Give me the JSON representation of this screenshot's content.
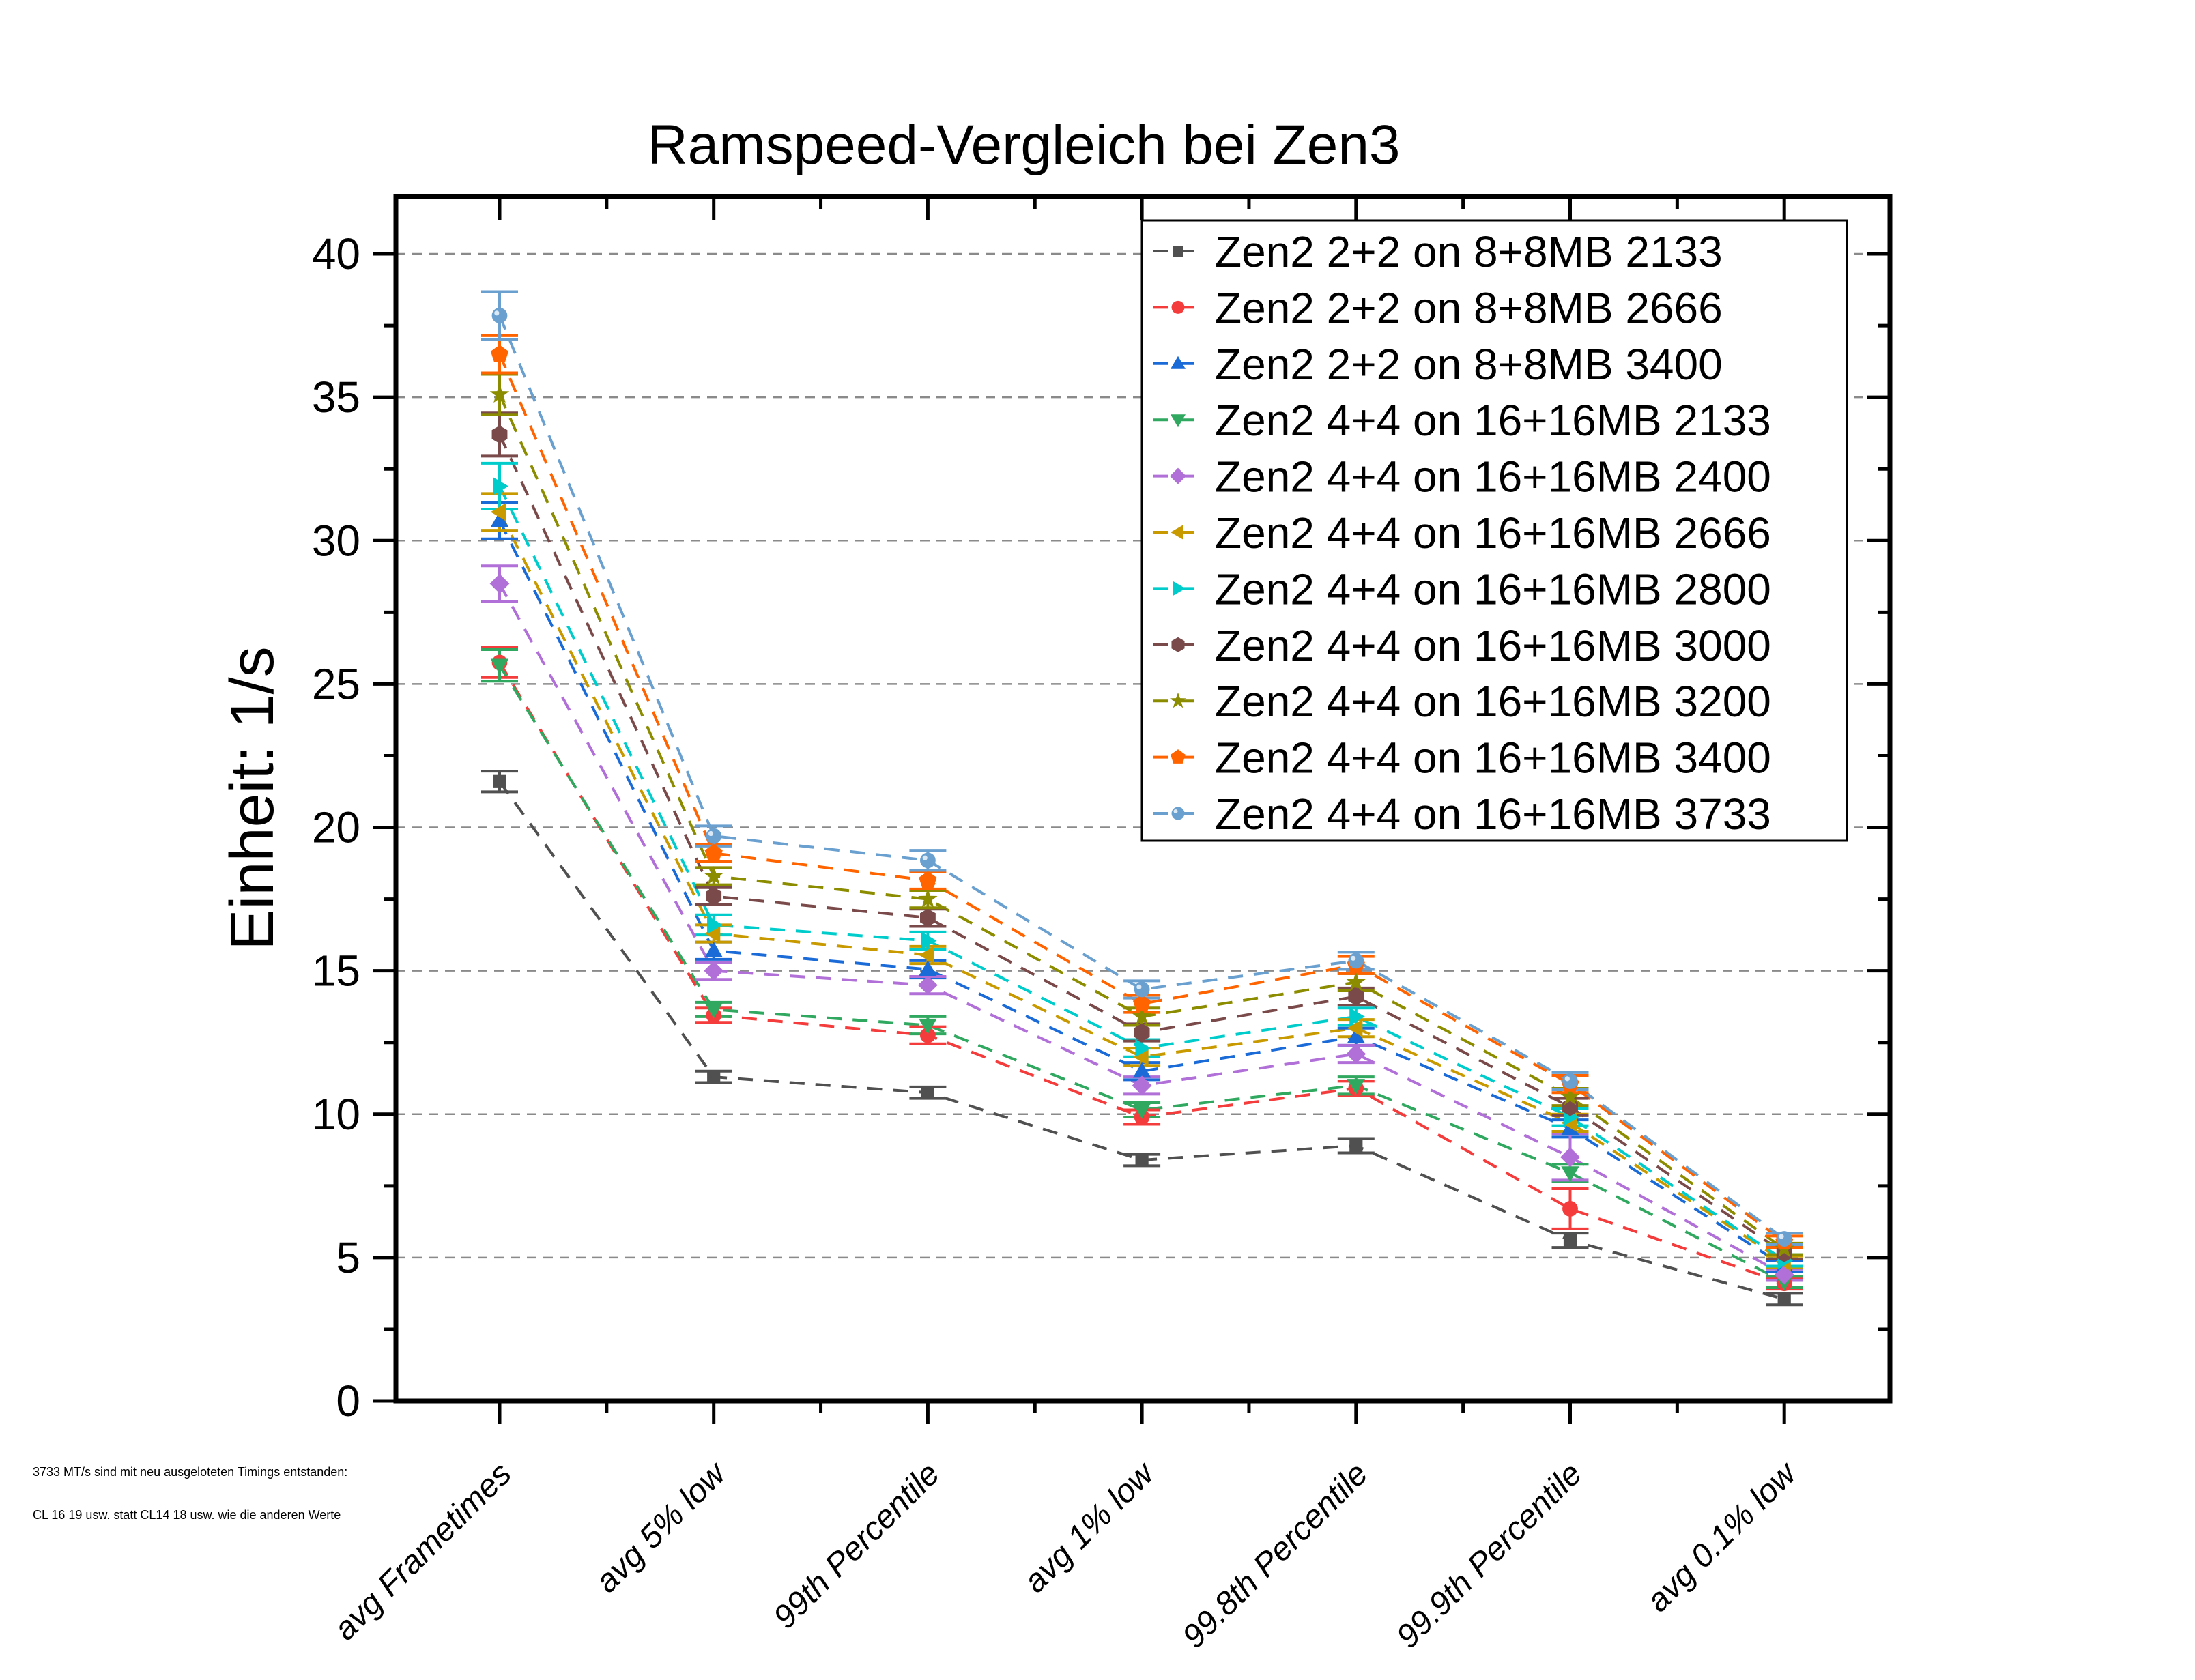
{
  "chart_data": {
    "type": "line",
    "title": "Ramspeed-Vergleich bei Zen3",
    "xlabel": "",
    "ylabel": "Einheit: 1/s",
    "ylim": [
      0,
      42
    ],
    "yticks": [
      0,
      5,
      10,
      15,
      20,
      25,
      30,
      35,
      40
    ],
    "grid": true,
    "legend_position": "top-right",
    "line_style": "dashed",
    "error_bars": true,
    "categories": [
      "avg Frametimes",
      "avg 5% low",
      "99th Percentile",
      "avg 1% low",
      "99.8th Percentile",
      "99.9th Percentile",
      "avg 0.1% low"
    ],
    "series": [
      {
        "name": "Zen2 2+2 on 8+8MB 2133",
        "color": "#505050",
        "marker": "square",
        "values": [
          21.6,
          11.3,
          10.75,
          8.4,
          8.9,
          5.6,
          3.55
        ],
        "errors": [
          0.36,
          0.2,
          0.2,
          0.2,
          0.25,
          0.25,
          0.2
        ]
      },
      {
        "name": "Zen2 2+2 on 8+8MB 2666",
        "color": "#f53c3c",
        "marker": "circle",
        "values": [
          25.75,
          13.45,
          12.75,
          9.9,
          10.9,
          6.7,
          4.1
        ],
        "errors": [
          0.52,
          0.25,
          0.3,
          0.25,
          0.25,
          0.7,
          0.2
        ]
      },
      {
        "name": "Zen2 2+2 on 8+8MB 3400",
        "color": "#1a6ad8",
        "marker": "triangle-up",
        "values": [
          30.7,
          15.7,
          15.05,
          11.5,
          12.7,
          9.5,
          4.7
        ],
        "errors": [
          0.64,
          0.3,
          0.3,
          0.3,
          0.3,
          0.3,
          0.2
        ]
      },
      {
        "name": "Zen2 4+4 on 16+16MB 2133",
        "color": "#30a860",
        "marker": "triangle-down",
        "values": [
          25.65,
          13.65,
          13.1,
          10.15,
          11.0,
          7.95,
          4.15
        ],
        "errors": [
          0.55,
          0.25,
          0.3,
          0.25,
          0.3,
          0.3,
          0.2
        ]
      },
      {
        "name": "Zen2 4+4 on 16+16MB 2400",
        "color": "#b070d8",
        "marker": "diamond",
        "values": [
          28.5,
          15.0,
          14.5,
          11.0,
          12.1,
          8.5,
          4.4
        ],
        "errors": [
          0.62,
          0.3,
          0.3,
          0.3,
          0.3,
          0.8,
          0.2
        ]
      },
      {
        "name": "Zen2 4+4 on 16+16MB 2666",
        "color": "#c89a00",
        "marker": "triangle-left",
        "values": [
          31.0,
          16.3,
          15.55,
          12.0,
          13.0,
          9.7,
          4.85
        ],
        "errors": [
          0.64,
          0.3,
          0.3,
          0.3,
          0.3,
          0.3,
          0.2
        ]
      },
      {
        "name": "Zen2 4+4 on 16+16MB 2800",
        "color": "#00cccc",
        "marker": "triangle-right",
        "values": [
          31.9,
          16.6,
          16.05,
          12.3,
          13.4,
          9.9,
          4.9
        ],
        "errors": [
          0.8,
          0.35,
          0.3,
          0.3,
          0.3,
          0.3,
          0.2
        ]
      },
      {
        "name": "Zen2 4+4 on 16+16MB 3000",
        "color": "#7a4a4a",
        "marker": "hexagon",
        "values": [
          33.7,
          17.6,
          16.85,
          12.85,
          14.1,
          10.25,
          5.15
        ],
        "errors": [
          0.75,
          0.3,
          0.3,
          0.3,
          0.3,
          0.3,
          0.2
        ]
      },
      {
        "name": "Zen2 4+4 on 16+16MB 3200",
        "color": "#8c8c00",
        "marker": "star",
        "values": [
          35.1,
          18.3,
          17.5,
          13.4,
          14.6,
          10.6,
          5.3
        ],
        "errors": [
          0.7,
          0.3,
          0.3,
          0.3,
          0.3,
          0.3,
          0.2
        ]
      },
      {
        "name": "Zen2 4+4 on 16+16MB 3400",
        "color": "#ff6400",
        "marker": "pentagon",
        "values": [
          36.5,
          19.1,
          18.15,
          13.85,
          15.2,
          11.05,
          5.55
        ],
        "errors": [
          0.65,
          0.3,
          0.3,
          0.3,
          0.3,
          0.3,
          0.2
        ]
      },
      {
        "name": "Zen2 4+4 on 16+16MB 3733",
        "color": "#6aa0d0",
        "marker": "sphere",
        "values": [
          37.85,
          19.7,
          18.85,
          14.35,
          15.35,
          11.15,
          5.65
        ],
        "errors": [
          0.83,
          0.35,
          0.35,
          0.3,
          0.3,
          0.3,
          0.2
        ]
      }
    ],
    "annotations": [
      "3733 MT/s sind mit neu ausgeloteten Timings entstanden:",
      "CL 16 19 usw. statt CL14 18 usw. wie die anderen Werte"
    ]
  }
}
